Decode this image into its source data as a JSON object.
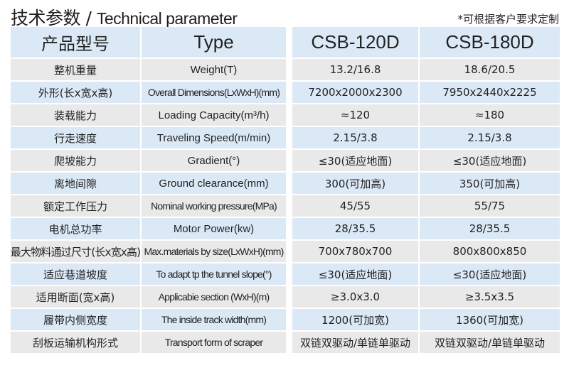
{
  "title_cn": "技术参数 / ",
  "title_en": "Technical parameter",
  "note": "*可根据客户要求定制",
  "header": {
    "label_cn": "产品型号",
    "label_en": "Type",
    "models": [
      "CSB-120D",
      "CSB-180D"
    ]
  },
  "rows": [
    {
      "cn": "整机重量",
      "en": "Weight(T)",
      "v1": "13.2/16.8",
      "v2": "18.6/20.5"
    },
    {
      "cn": "外形(长x宽x高)",
      "en": "Overall Dimensions(LxWxH)(mm)",
      "v1": "7200x2000x2300",
      "v2": "7950x2440x2225"
    },
    {
      "cn": "装载能力",
      "en": "Loading Capacity(m³/h)",
      "v1": "≈120",
      "v2": "≈180"
    },
    {
      "cn": "行走速度",
      "en": "Traveling Speed(m/min)",
      "v1": "2.15/3.8",
      "v2": "2.15/3.8"
    },
    {
      "cn": "爬坡能力",
      "en": "Gradient(°)",
      "v1": "≤30(适应地面)",
      "v2": "≤30(适应地面)"
    },
    {
      "cn": "离地间隙",
      "en": "Ground clearance(mm)",
      "v1": "300(可加高)",
      "v2": "350(可加高)"
    },
    {
      "cn": "额定工作压力",
      "en": "Nominal working pressure(MPa)",
      "v1": "45/55",
      "v2": "55/75"
    },
    {
      "cn": "电机总功率",
      "en": "Motor Power(kw)",
      "v1": "28/35.5",
      "v2": "28/35.5"
    },
    {
      "cn": "最大物料通过尺寸(长x宽x高)",
      "en": "Max.materials by size(LxWxH)(mm)",
      "v1": "700x780x700",
      "v2": "800x800x850"
    },
    {
      "cn": "适应巷道坡度",
      "en": "To adapt tp the tunnel slope(°)",
      "v1": "≤30(适应地面)",
      "v2": "≤30(适应地面)"
    },
    {
      "cn": "适用断面(宽x高)",
      "en": "Applicabie section (WxH)(m)",
      "v1": "≥3.0x3.0",
      "v2": "≥3.5x3.5"
    },
    {
      "cn": "履带内侧宽度",
      "en": "The inside track width(mm)",
      "v1": "1200(可加宽)",
      "v2": "1360(可加宽)"
    },
    {
      "cn": "刮板运输机构形式",
      "en": "Transport form of scraper",
      "v1": "双链双驱动/单链单驱动",
      "v2": "双链双驱动/单链单驱动"
    }
  ],
  "colors": {
    "header_bg": "#dbe9f7",
    "stripe_blue": "#dbe9f7",
    "stripe_gray": "#e9e9e9"
  }
}
